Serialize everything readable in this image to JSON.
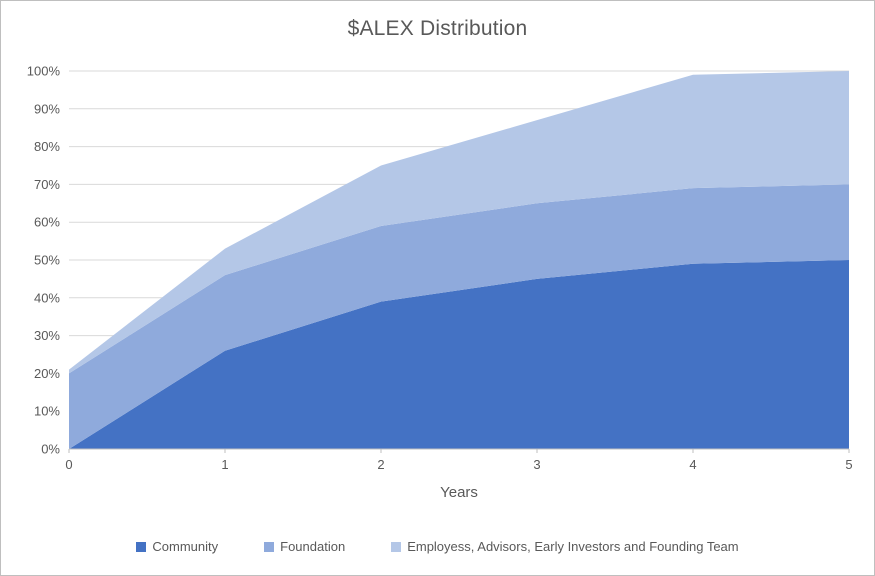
{
  "chart_data": {
    "type": "area",
    "stacked": true,
    "title": "$ALEX Distribution",
    "xlabel": "Years",
    "ylabel": "",
    "x": [
      0,
      1,
      2,
      3,
      4,
      5
    ],
    "xlim": [
      0,
      5
    ],
    "ylim": [
      0,
      100
    ],
    "xticks": [
      0,
      1,
      2,
      3,
      4,
      5
    ],
    "yticks": [
      0,
      10,
      20,
      30,
      40,
      50,
      60,
      70,
      80,
      90,
      100
    ],
    "ytick_suffix": "%",
    "grid": true,
    "legend_position": "bottom",
    "series": [
      {
        "name": "Community",
        "color": "#4472C4",
        "values": [
          0,
          26,
          39,
          45,
          49,
          50
        ]
      },
      {
        "name": "Foundation",
        "color": "#8FAADC",
        "values": [
          20,
          20,
          20,
          20,
          20,
          20
        ]
      },
      {
        "name": "Employess, Advisors, Early Investors and Founding Team",
        "color": "#B4C7E7",
        "values": [
          1,
          7,
          16,
          22,
          30,
          30
        ]
      }
    ],
    "colors": {
      "title_text": "#595959",
      "tick_text": "#595959",
      "grid_line": "#D9D9D9",
      "axis_line": "#BFBFBF"
    }
  }
}
